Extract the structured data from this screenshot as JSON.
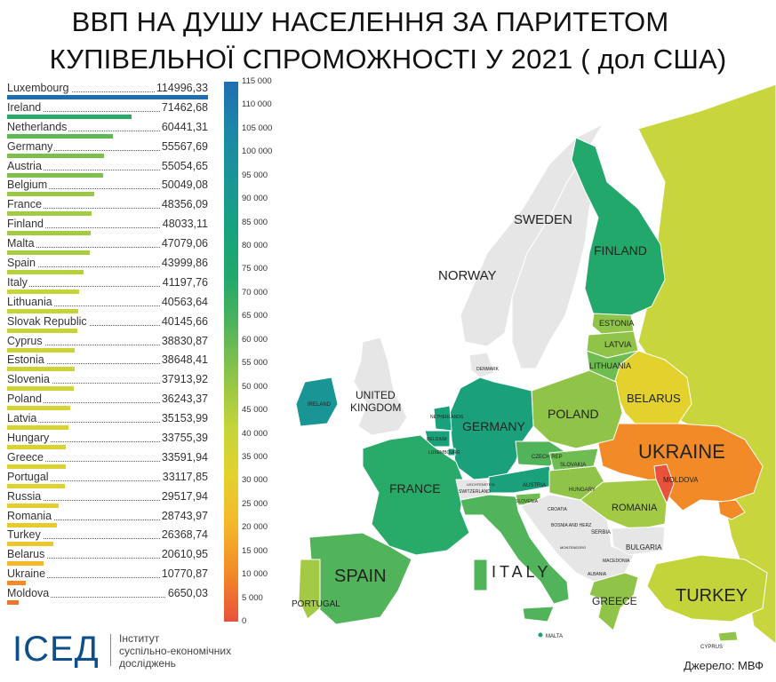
{
  "title": {
    "line1": "ВВП НА ДУШУ НАСЕЛЕННЯ ЗА ПАРИТЕТОМ",
    "line2": "КУПІВЕЛЬНОЇ СПРОМОЖНОСТІ У 2021   ( дол США)"
  },
  "chart_data": {
    "type": "bar",
    "orientation": "horizontal",
    "categories": [
      "Luxembourg",
      "Ireland",
      "Netherlands",
      "Germany",
      "Austria",
      "Belgium",
      "France",
      "Finland",
      "Malta",
      "Spain",
      "Italy",
      "Lithuania",
      "Slovak Republic",
      "Cyprus",
      "Estonia",
      "Slovenia",
      "Poland",
      "Latvia",
      "Hungary",
      "Greece",
      "Portugal",
      "Russia",
      "Romania",
      "Turkey",
      "Belarus",
      "Ukraine",
      "Moldova"
    ],
    "values": [
      114996.33,
      71462.68,
      60441.31,
      55567.69,
      55054.65,
      50049.08,
      48356.09,
      48033.11,
      47079.06,
      43999.86,
      41197.76,
      40563.64,
      40145.66,
      38830.87,
      38648.41,
      37913.92,
      36243.37,
      35153.99,
      33755.39,
      33591.94,
      33117.85,
      29517.94,
      28743.97,
      26368.74,
      20610.95,
      10770.87,
      6650.03
    ],
    "value_labels": [
      "114996,33",
      "71462,68",
      "60441,31",
      "55567,69",
      "55054,65",
      "50049,08",
      "48356,09",
      "48033,11",
      "47079,06",
      "43999,86",
      "41197,76",
      "40563,64",
      "40145,66",
      "38830,87",
      "38648,41",
      "37913,92",
      "36243,37",
      "35153,99",
      "33755,39",
      "33591,94",
      "33117,85",
      "29517,94",
      "28743,97",
      "26368,74",
      "20610,95",
      "10770,87",
      "6650,03"
    ],
    "color_scale": {
      "min": 0,
      "max": 115000,
      "tick_values": [
        0,
        5000,
        10000,
        15000,
        20000,
        25000,
        30000,
        35000,
        40000,
        45000,
        50000,
        55000,
        60000,
        65000,
        70000,
        75000,
        80000,
        85000,
        90000,
        95000,
        100000,
        105000,
        110000,
        115000
      ],
      "tick_labels": [
        "0",
        "5 000",
        "10 000",
        "15 000",
        "20 000",
        "25 000",
        "30 000",
        "35 000",
        "40 000",
        "45 000",
        "50 000",
        "55 000",
        "60 000",
        "65 000",
        "70 000",
        "75 000",
        "80 000",
        "85 000",
        "90 000",
        "95 000",
        "100 000",
        "105 000",
        "110 000",
        "115 000"
      ],
      "stops": [
        "#e8513a",
        "#f28a28",
        "#f4b82a",
        "#e3d22e",
        "#c2d43a",
        "#8fc448",
        "#52b45a",
        "#22a86a",
        "#17a27e",
        "#1a9596",
        "#1c87a8",
        "#1f6fb0"
      ]
    }
  },
  "map": {
    "labels": {
      "sweden": "SWEDEN",
      "norway": "NORWAY",
      "finland": "FINLAND",
      "estonia": "ESTONIA",
      "latvia": "LATVIA",
      "lithuania": "LITHUANIA",
      "denmark": "DENMARK",
      "uk": "UNITED\nKINGDOM",
      "ireland": "IRELAND",
      "netherlands": "NETHERLANDS",
      "belgium": "BELGIUM",
      "luxembourg": "LUXEMBOURG",
      "germany": "GERMANY",
      "poland": "POLAND",
      "belarus": "BELARUS",
      "ukraine": "UKRAINE",
      "moldova": "MOLDOVA",
      "czech": "CZECH REP",
      "slovakia": "SLOVAKIA",
      "austria": "AUSTRIA",
      "liechtenstein": "LIECHTENSTEIN",
      "switzerland": "SWITZERLAND",
      "hungary": "HUNGARY",
      "slovenia": "SLOVENIA",
      "croatia": "CROATIA",
      "romania": "ROMANIA",
      "bosnia": "BOSNIA AND HERZ",
      "serbia": "SERBIA",
      "bulgaria": "BULGARIA",
      "montenegro": "MONTENEGRO",
      "macedonia": "MACEDONIA",
      "albania": "ALBANIA",
      "france": "FRANCE",
      "spain": "SPAIN",
      "portugal": "PORTUGAL",
      "italy": "ITALY",
      "greece": "GREECE",
      "turkey": "TURKEY",
      "malta": "MALTA",
      "cyprus": "CYPRUS"
    },
    "colors": {
      "nodata": "#e6e6e6",
      "sea": "#ffffff",
      "border": "#ffffff",
      "russia": "#c8d53c",
      "finland": "#22a86a",
      "estonia": "#8fc448",
      "latvia": "#8fc448",
      "lithuania": "#6fbc52",
      "belarus": "#e3d22e",
      "ukraine": "#f28a28",
      "moldova": "#e8513a",
      "poland": "#8fc448",
      "germany": "#1aa07a",
      "ireland": "#1a9596",
      "netherlands": "#18a27c",
      "france": "#28aa68",
      "spain": "#52b45a",
      "portugal": "#a3ca44",
      "italy": "#52b45a",
      "austria": "#1aa07a",
      "czech": "#52b45a",
      "slovakia": "#6fbc52",
      "hungary": "#8fc448",
      "slovenia": "#6fbc52",
      "romania": "#a3ca44",
      "greece": "#8fc448",
      "turkey": "#c2d43a",
      "switzerland": "#e6e6e6"
    }
  },
  "logo": {
    "mark": "ICEД",
    "tagline_1": "Інститут",
    "tagline_2": "суспільно-економічних",
    "tagline_3": "досліджень"
  },
  "source": "Джерело: МВФ"
}
